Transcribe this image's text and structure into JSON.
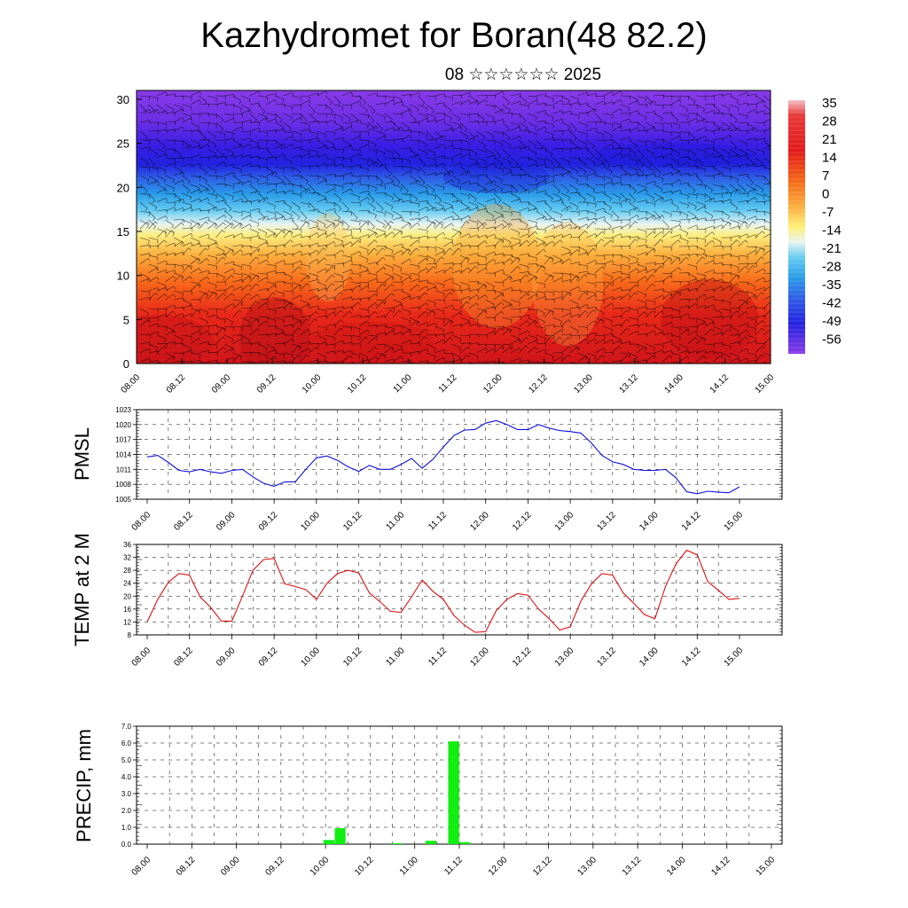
{
  "header": {
    "title": "Kazhydromet for Boran(48 82.2)",
    "subtitle": "08 ☆☆☆☆☆☆ 2025"
  },
  "chart_data": [
    {
      "type": "heatmap",
      "description_axes": "time vs height",
      "x_ticks": [
        "08.00",
        "08.12",
        "09.00",
        "09.12",
        "10.00",
        "10.12",
        "11.00",
        "11.12",
        "12.00",
        "12.12",
        "13.00",
        "13.12",
        "14.00",
        "14.12",
        "15.00"
      ],
      "y_ticks": [
        "0",
        "5",
        "10",
        "15",
        "20",
        "25",
        "30"
      ],
      "ylim": [
        0,
        31
      ],
      "colorbar_labels": [
        "35",
        "28",
        "21",
        "14",
        "7",
        "0",
        "-7",
        "-14",
        "-21",
        "-28",
        "-35",
        "-42",
        "-49",
        "-56"
      ],
      "colorbar_range": [
        -63,
        42
      ],
      "colors": {
        "warm": "#e8141a",
        "mid": "#fff07a",
        "cold": "#2020ee",
        "top": "#8b2be0"
      },
      "overlay": "wind barbs"
    },
    {
      "type": "line",
      "ylabel": "PMSL",
      "ylim": [
        1005,
        1023
      ],
      "y_ticks": [
        "1005",
        "1008",
        "1011",
        "1014",
        "1017",
        "1020",
        "1023"
      ],
      "x_ticks": [
        "08.00",
        "08.12",
        "09.00",
        "09.12",
        "10.00",
        "10.12",
        "11.00",
        "11.12",
        "12.00",
        "12.12",
        "13.00",
        "13.12",
        "14.00",
        "14.12",
        "15.00"
      ],
      "color": "#1010dd",
      "values": [
        1013.5,
        1013.8,
        1012.4,
        1010.8,
        1010.5,
        1011.0,
        1010.5,
        1010.2,
        1010.8,
        1011.0,
        1009.5,
        1008.2,
        1007.6,
        1008.5,
        1008.5,
        1011.0,
        1013.3,
        1013.7,
        1012.8,
        1011.5,
        1010.6,
        1011.8,
        1011.0,
        1011.0,
        1012.0,
        1013.2,
        1011.2,
        1013.0,
        1015.5,
        1017.8,
        1018.9,
        1019.0,
        1020.3,
        1020.8,
        1020.0,
        1019.0,
        1019.0,
        1020.0,
        1019.3,
        1018.8,
        1018.6,
        1018.3,
        1016.3,
        1013.8,
        1012.5,
        1012.0,
        1011.0,
        1010.8,
        1010.8,
        1011.0,
        1009.3,
        1006.5,
        1006.1,
        1006.6,
        1006.4,
        1006.3,
        1007.5
      ]
    },
    {
      "type": "line",
      "ylabel": "TEMP at 2 M",
      "ylim": [
        8,
        36
      ],
      "y_ticks": [
        "8",
        "12",
        "16",
        "20",
        "24",
        "28",
        "32",
        "36"
      ],
      "x_ticks": [
        "08.00",
        "08.12",
        "09.00",
        "09.12",
        "10.00",
        "10.12",
        "11.00",
        "11.12",
        "12.00",
        "12.12",
        "13.00",
        "13.12",
        "14.00",
        "14.12",
        "15.00"
      ],
      "color": "#dd1010",
      "values": [
        12.0,
        19.0,
        24.3,
        27.0,
        26.5,
        19.8,
        16.5,
        12.3,
        12.2,
        20.0,
        28.0,
        31.3,
        31.7,
        23.8,
        23.0,
        22.0,
        19.0,
        24.0,
        27.0,
        28.0,
        27.2,
        21.0,
        18.3,
        15.3,
        15.0,
        19.8,
        25.0,
        21.5,
        19.0,
        14.0,
        11.0,
        8.8,
        9.0,
        15.5,
        19.0,
        20.8,
        20.3,
        16.0,
        13.0,
        9.5,
        10.5,
        18.5,
        23.8,
        27.0,
        26.5,
        21.0,
        17.8,
        14.3,
        13.0,
        23.0,
        30.0,
        34.2,
        32.8,
        24.5,
        21.8,
        19.0,
        19.3
      ]
    },
    {
      "type": "bar",
      "ylabel": "PRECIP, mm",
      "ylim": [
        0,
        7.0
      ],
      "y_ticks": [
        "0.0",
        "1.0",
        "2.0",
        "3.0",
        "4.0",
        "5.0",
        "6.0",
        "7.0"
      ],
      "x_ticks": [
        "08.00",
        "08.12",
        "09.00",
        "09.12",
        "10.00",
        "10.12",
        "11.00",
        "11.12",
        "12.00",
        "12.12",
        "13.00",
        "13.12",
        "14.00",
        "14.12",
        "15.00"
      ],
      "color": "#11ee11",
      "values": [
        0,
        0,
        0,
        0,
        0,
        0,
        0,
        0,
        0,
        0,
        0,
        0,
        0,
        0,
        0,
        0,
        0.25,
        0.95,
        0,
        0,
        0,
        0,
        0.05,
        0,
        0,
        0.2,
        0,
        6.1,
        0.12,
        0,
        0,
        0,
        0,
        0,
        0,
        0,
        0,
        0,
        0,
        0,
        0,
        0,
        0,
        0,
        0,
        0,
        0,
        0,
        0,
        0,
        0,
        0,
        0,
        0,
        0,
        0
      ]
    }
  ]
}
